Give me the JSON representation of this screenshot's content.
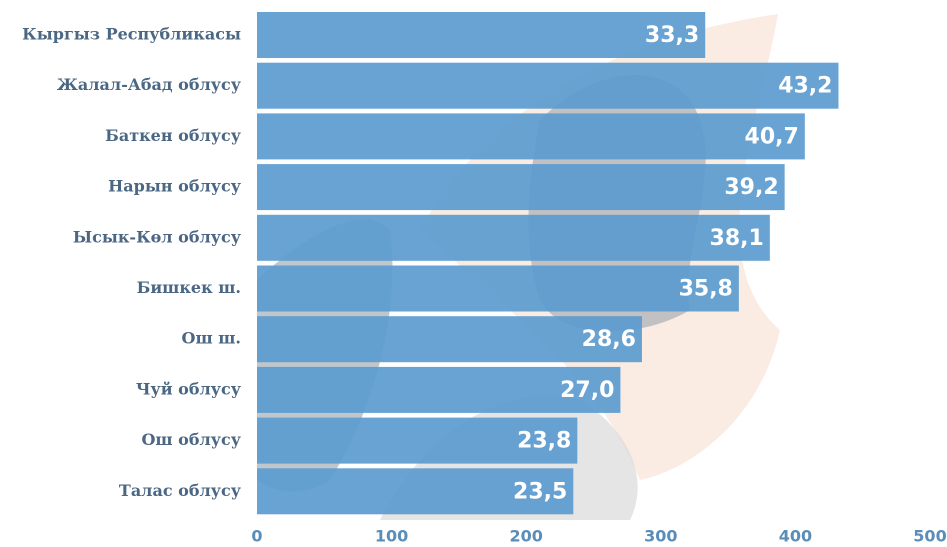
{
  "chart_data": {
    "type": "bar",
    "categories": [
      "Кыргыз Республикасы",
      "Жалал-Абад облусу",
      "Баткен облусу",
      "Нарын облусу",
      "Ысык-Көл облусу",
      "Бишкек ш.",
      "Ош ш.",
      "Чуй облусу",
      "Ош облусу",
      "Талас облусу"
    ],
    "values": [
      333,
      432,
      407,
      392,
      381,
      358,
      286,
      270,
      238,
      235
    ],
    "value_labels": [
      "33,3",
      "43,2",
      "40,7",
      "39,2",
      "38,1",
      "35,8",
      "28,6",
      "27,0",
      "23,8",
      "23,5"
    ],
    "color": "#5b9bcf",
    "xlim": [
      0,
      500
    ],
    "xticks": [
      0,
      100,
      200,
      300,
      400,
      500
    ]
  }
}
